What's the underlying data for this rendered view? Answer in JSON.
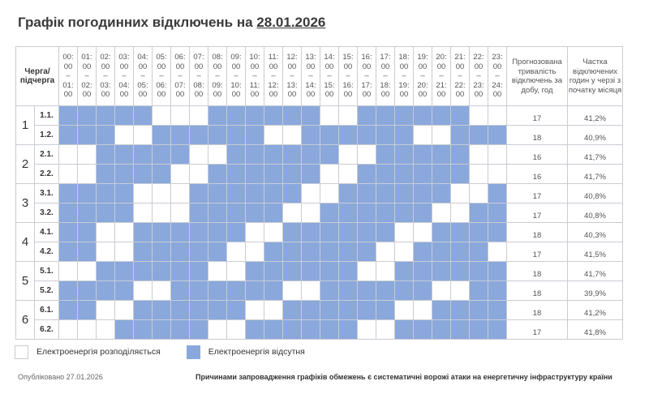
{
  "title": {
    "prefix": "Графік погодинних відключень на ",
    "date": "28.01.2026"
  },
  "header": {
    "queue": "Черга/ підчерга",
    "duration": "Прогнозована тривалість відключень за добу, год",
    "share": "Частка відключених годин у черзі з початку місяця",
    "hours": [
      "00",
      "01",
      "02",
      "03",
      "04",
      "05",
      "06",
      "07",
      "08",
      "09",
      "10",
      "11",
      "12",
      "13",
      "14",
      "15",
      "16",
      "17",
      "18",
      "19",
      "20",
      "21",
      "22",
      "23",
      "24"
    ]
  },
  "colors": {
    "outage": "#8aa8dc",
    "power": "#ffffff"
  },
  "groups": [
    {
      "label": "1",
      "rows": [
        {
          "sub": "1.1.",
          "hours": "111110001111110011111100",
          "duration": "17",
          "share": "41,2%"
        },
        {
          "sub": "1.2.",
          "hours": "111001111110011111100111",
          "duration": "18",
          "share": "40,9%"
        }
      ]
    },
    {
      "label": "2",
      "rows": [
        {
          "sub": "2.1.",
          "hours": "001111100111111001111100",
          "duration": "16",
          "share": "41,7%"
        },
        {
          "sub": "2.2.",
          "hours": "001111001111110011111100",
          "duration": "16",
          "share": "41,7%"
        }
      ]
    },
    {
      "label": "3",
      "rows": [
        {
          "sub": "3.1.",
          "hours": "111100011111100111111001",
          "duration": "17",
          "share": "40,8%"
        },
        {
          "sub": "3.2.",
          "hours": "111100011111001111110011",
          "duration": "17",
          "share": "40,8%"
        }
      ]
    },
    {
      "label": "4",
      "rows": [
        {
          "sub": "4.1.",
          "hours": "110011111100111111001111",
          "duration": "18",
          "share": "40,3%"
        },
        {
          "sub": "4.2.",
          "hours": "110011111001111110011110",
          "duration": "17",
          "share": "41,5%"
        }
      ]
    },
    {
      "label": "5",
      "rows": [
        {
          "sub": "5.1.",
          "hours": "001111110011111100111111",
          "duration": "18",
          "share": "41,7%"
        },
        {
          "sub": "5.2.",
          "hours": "111100111111001111110011",
          "duration": "18",
          "share": "39,9%"
        }
      ]
    },
    {
      "label": "6",
      "rows": [
        {
          "sub": "6.1.",
          "hours": "110011111100111111001111",
          "duration": "18",
          "share": "41,2%"
        },
        {
          "sub": "6.2.",
          "hours": "000111110011111100111111",
          "duration": "17",
          "share": "41,8%"
        }
      ]
    }
  ],
  "legend": {
    "power": "Електроенергія розподіляється",
    "outage": "Електроенергія відсутня"
  },
  "footer": {
    "published": "Опубліковано 27.01.2026",
    "note": "Причинами запровадження графіків обмежень є систематичні ворожі атаки на енергетичну інфраструктуру країни"
  }
}
